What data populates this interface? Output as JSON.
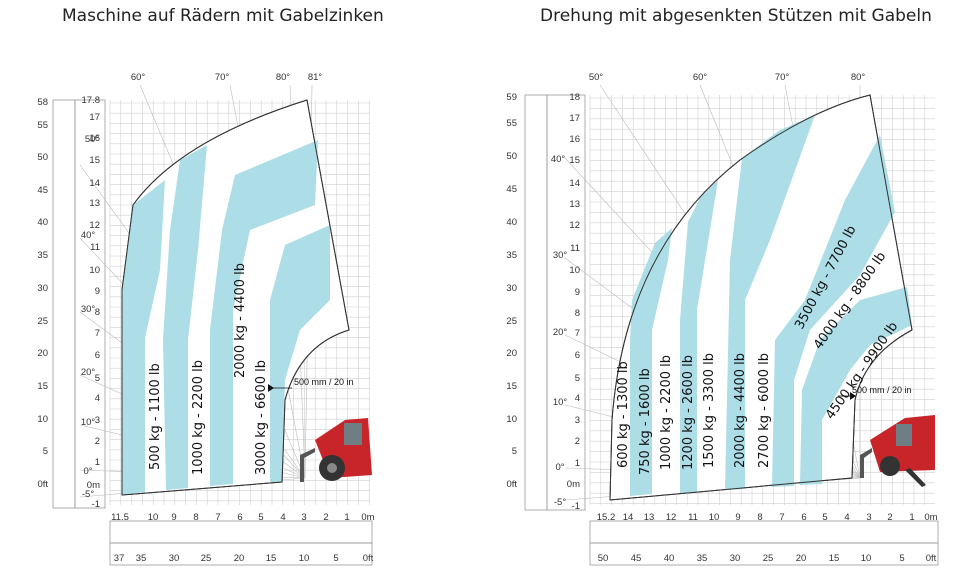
{
  "chart_data": [
    {
      "type": "load-chart",
      "title": "Maschine auf Rädern mit Gabelzinken",
      "height_m_ticks": [
        "17.8",
        "17",
        "16",
        "15",
        "14",
        "13",
        "12",
        "11",
        "10",
        "9",
        "8",
        "7",
        "6",
        "5",
        "4",
        "3",
        "2",
        "1",
        "0m",
        "-1"
      ],
      "height_ft_ticks": [
        "58",
        "55",
        "50",
        "45",
        "40",
        "35",
        "30",
        "25",
        "20",
        "15",
        "10",
        "5",
        "0ft"
      ],
      "reach_m_ticks": [
        "11.5",
        "10",
        "9",
        "8",
        "7",
        "6",
        "5",
        "4",
        "3",
        "2",
        "1",
        "0m"
      ],
      "reach_ft_ticks": [
        "37",
        "35",
        "30",
        "25",
        "20",
        "15",
        "10",
        "5",
        "0ft"
      ],
      "angles": [
        "60°",
        "70°",
        "80°",
        "81°",
        "50°",
        "40°",
        "30°",
        "20°",
        "10°",
        "0°",
        "-5°"
      ],
      "max_height_m": 17.8,
      "max_reach_m": 11.5,
      "bands": [
        {
          "label": "500 kg - 1100 lb"
        },
        {
          "label": "1000 kg - 2200 lb"
        },
        {
          "label": "2000 kg - 4400 lb"
        },
        {
          "label": "3000 kg - 6600 lb"
        }
      ],
      "annotation": "500 mm / 20 in",
      "band_color": "#a9dbe6"
    },
    {
      "type": "load-chart",
      "title": "Drehung mit abgesenkten Stützen mit Gabeln",
      "height_m_ticks": [
        "18",
        "17",
        "16",
        "15",
        "14",
        "13",
        "12",
        "11",
        "10",
        "9",
        "8",
        "7",
        "6",
        "5",
        "4",
        "3",
        "2",
        "1",
        "0m",
        "-1"
      ],
      "height_ft_ticks": [
        "59",
        "55",
        "50",
        "45",
        "40",
        "35",
        "30",
        "25",
        "20",
        "15",
        "10",
        "5",
        "0ft"
      ],
      "reach_m_ticks": [
        "15.2",
        "14",
        "13",
        "12",
        "11",
        "10",
        "9",
        "8",
        "7",
        "6",
        "5",
        "4",
        "3",
        "2",
        "1",
        "0m"
      ],
      "reach_ft_ticks": [
        "50",
        "45",
        "40",
        "35",
        "30",
        "25",
        "20",
        "15",
        "10",
        "5",
        "0ft"
      ],
      "angles": [
        "50°",
        "60°",
        "70°",
        "80°",
        "40°",
        "30°",
        "20°",
        "10°",
        "0°",
        "-5°"
      ],
      "max_height_m": 18,
      "max_reach_m": 15.2,
      "bands": [
        {
          "label": "600 kg - 1300 lb"
        },
        {
          "label": "750 kg - 1600 lb"
        },
        {
          "label": "1000 kg - 2200 lb"
        },
        {
          "label": "1200 kg - 2600 lb"
        },
        {
          "label": "1500 kg - 3300 lb"
        },
        {
          "label": "2000 kg - 4400 lb"
        },
        {
          "label": "2700 kg - 6000 lb"
        },
        {
          "label": "3500 kg - 7700 lb"
        },
        {
          "label": "4000 kg - 8800 lb"
        },
        {
          "label": "4500 kg - 9900 lb"
        }
      ],
      "annotation": "500 mm / 20 in",
      "band_color": "#a9dbe6"
    }
  ]
}
